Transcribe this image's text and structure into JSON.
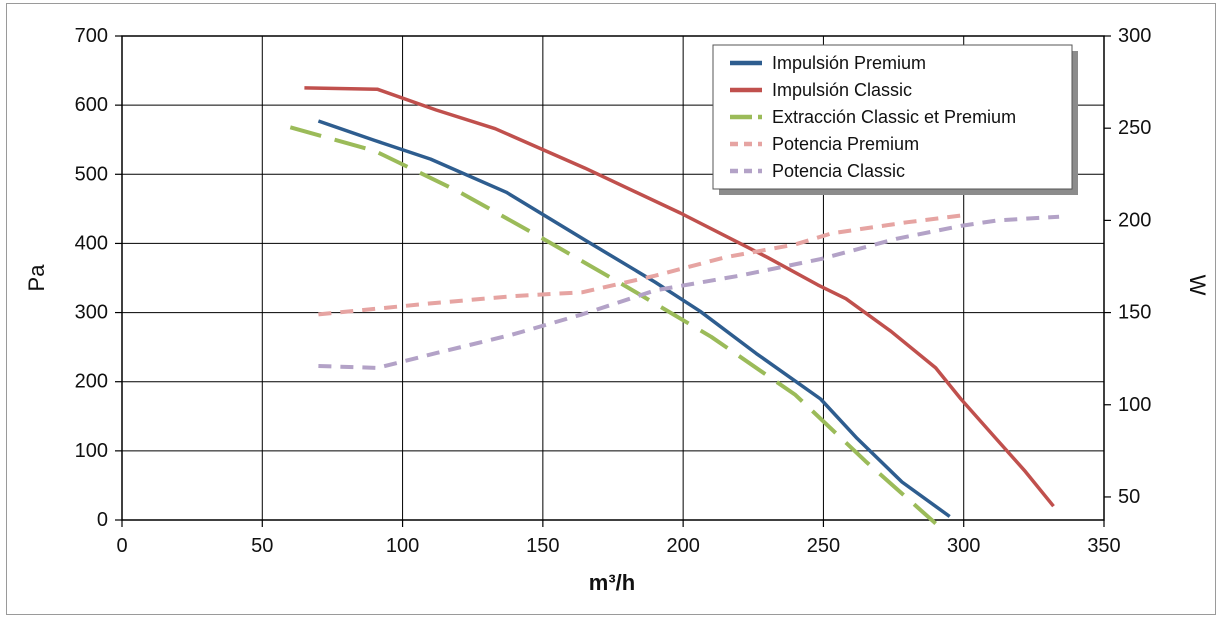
{
  "chart_data": {
    "type": "line",
    "xlabel": "m³/h",
    "ylabel": "Pa",
    "y2label": "W",
    "xlim": [
      0,
      350
    ],
    "ylim": [
      0,
      700
    ],
    "y2lim": [
      37.5,
      300
    ],
    "xticks": [
      0,
      50,
      100,
      150,
      200,
      250,
      300,
      350
    ],
    "yticks": [
      0,
      100,
      200,
      300,
      400,
      500,
      600,
      700
    ],
    "y2ticks": [
      50,
      100,
      150,
      200,
      250,
      300
    ],
    "grid": true,
    "legend_position": "top-right",
    "series": [
      {
        "name": "Impulsión Premium",
        "axis": "left",
        "style": "solid",
        "color": "#2e5d8f",
        "x": [
          70,
          90,
          110,
          137,
          165,
          190,
          206,
          226,
          249,
          262,
          278,
          295
        ],
        "y": [
          577,
          549,
          522,
          474,
          405,
          344,
          302,
          241,
          175,
          118,
          55,
          5
        ]
      },
      {
        "name": "Impulsión Classic",
        "axis": "left",
        "style": "solid",
        "color": "#c0504d",
        "x": [
          65,
          91,
          112,
          133,
          165,
          199,
          230,
          248,
          258,
          274,
          290,
          299,
          311,
          322,
          332
        ],
        "y": [
          625,
          623,
          593,
          566,
          509,
          444,
          380,
          340,
          320,
          273,
          220,
          175,
          120,
          70,
          20
        ]
      },
      {
        "name": "Extracción Classic et Premium",
        "axis": "left",
        "style": "dash",
        "color": "#9bbb59",
        "x": [
          60,
          90,
          120,
          150,
          180,
          210,
          240,
          265,
          290
        ],
        "y": [
          568,
          534,
          475,
          407,
          337,
          265,
          181,
          85,
          -5
        ]
      },
      {
        "name": "Potencia Premium",
        "axis": "right",
        "style": "shortdash",
        "color": "#e6a4a2",
        "x": [
          70,
          90,
          110,
          140,
          164,
          190,
          215,
          240,
          253,
          280,
          301
        ],
        "y": [
          149,
          152,
          155,
          159,
          161,
          170,
          180,
          187,
          193,
          199,
          203
        ]
      },
      {
        "name": "Potencia Classic",
        "axis": "right",
        "style": "shortdash",
        "color": "#b3a2c7",
        "x": [
          70,
          91,
          112,
          139,
          164,
          190,
          220,
          249,
          276,
          299,
          312,
          334
        ],
        "y": [
          121,
          120,
          128,
          138,
          149,
          162,
          170,
          179,
          190,
          197,
          200,
          202
        ]
      }
    ]
  }
}
